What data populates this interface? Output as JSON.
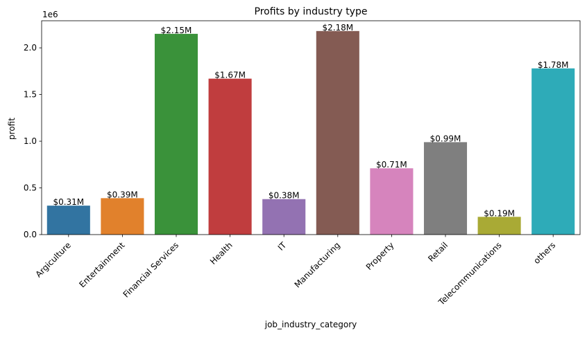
{
  "chart_data": {
    "type": "bar",
    "title": "Profits by industry type",
    "xlabel": "job_industry_category",
    "ylabel": "profit",
    "y_offset_label": "1e6",
    "ylim": [
      0,
      2.29
    ],
    "y_ticks": [
      0.0,
      0.5,
      1.0,
      1.5,
      2.0
    ],
    "y_tick_labels": [
      "0.0",
      "0.5",
      "1.0",
      "1.5",
      "2.0"
    ],
    "grid": false,
    "categories": [
      "Argiculture",
      "Entertainment",
      "Financial Services",
      "Health",
      "IT",
      "Manufacturing",
      "Property",
      "Retail",
      "Telecommunications",
      "others"
    ],
    "values": [
      0.31,
      0.39,
      2.15,
      1.67,
      0.38,
      2.18,
      0.71,
      0.99,
      0.19,
      1.78
    ],
    "data_labels": [
      "$0.31M",
      "$0.39M",
      "$2.15M",
      "$1.67M",
      "$0.38M",
      "$2.18M",
      "$0.71M",
      "$0.99M",
      "$0.19M",
      "$1.78M"
    ],
    "colors": [
      "#3274a1",
      "#e1812c",
      "#3a923a",
      "#c03d3e",
      "#9372b2",
      "#845b53",
      "#d684bd",
      "#7f7f7f",
      "#a9aa35",
      "#2eabb8"
    ]
  }
}
